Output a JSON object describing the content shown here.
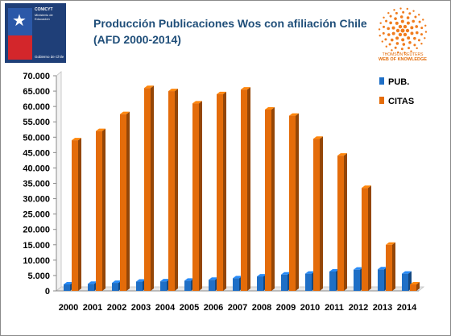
{
  "header": {
    "title": "Producción Publicaciones Wos con afiliación Chile",
    "subtitle": "(AFD 2000-2014)"
  },
  "logos": {
    "left": {
      "name": "CONICYT",
      "line2": "Ministerio de Educación",
      "line3": "Gobierno de Chile"
    },
    "right": {
      "line1": "THOMSON REUTERS",
      "line2": "WEB OF KNOWLEDGE"
    }
  },
  "chart_data": {
    "type": "bar",
    "categories": [
      "2000",
      "2001",
      "2002",
      "2003",
      "2004",
      "2005",
      "2006",
      "2007",
      "2008",
      "2009",
      "2010",
      "2011",
      "2012",
      "2013",
      "2014"
    ],
    "series": [
      {
        "name": "PUB.",
        "color": "#1f6fc6",
        "values": [
          2100,
          2300,
          2600,
          3000,
          3100,
          3300,
          3600,
          4100,
          4700,
          5300,
          5600,
          6300,
          6900,
          7000,
          5600
        ]
      },
      {
        "name": "CITAS",
        "color": "#e46c0a",
        "values": [
          49000,
          52000,
          57500,
          66000,
          65000,
          61000,
          64000,
          65500,
          59000,
          57000,
          49500,
          44000,
          33500,
          15000,
          2100
        ]
      }
    ],
    "ylim": [
      0,
      70000
    ],
    "yticks": [
      "0",
      "5.000",
      "10.000",
      "15.000",
      "20.000",
      "25.000",
      "30.000",
      "35.000",
      "40.000",
      "45.000",
      "50.000",
      "55.000",
      "60.000",
      "65.000",
      "70.000"
    ],
    "grid": false,
    "legend_position": "top-right"
  }
}
